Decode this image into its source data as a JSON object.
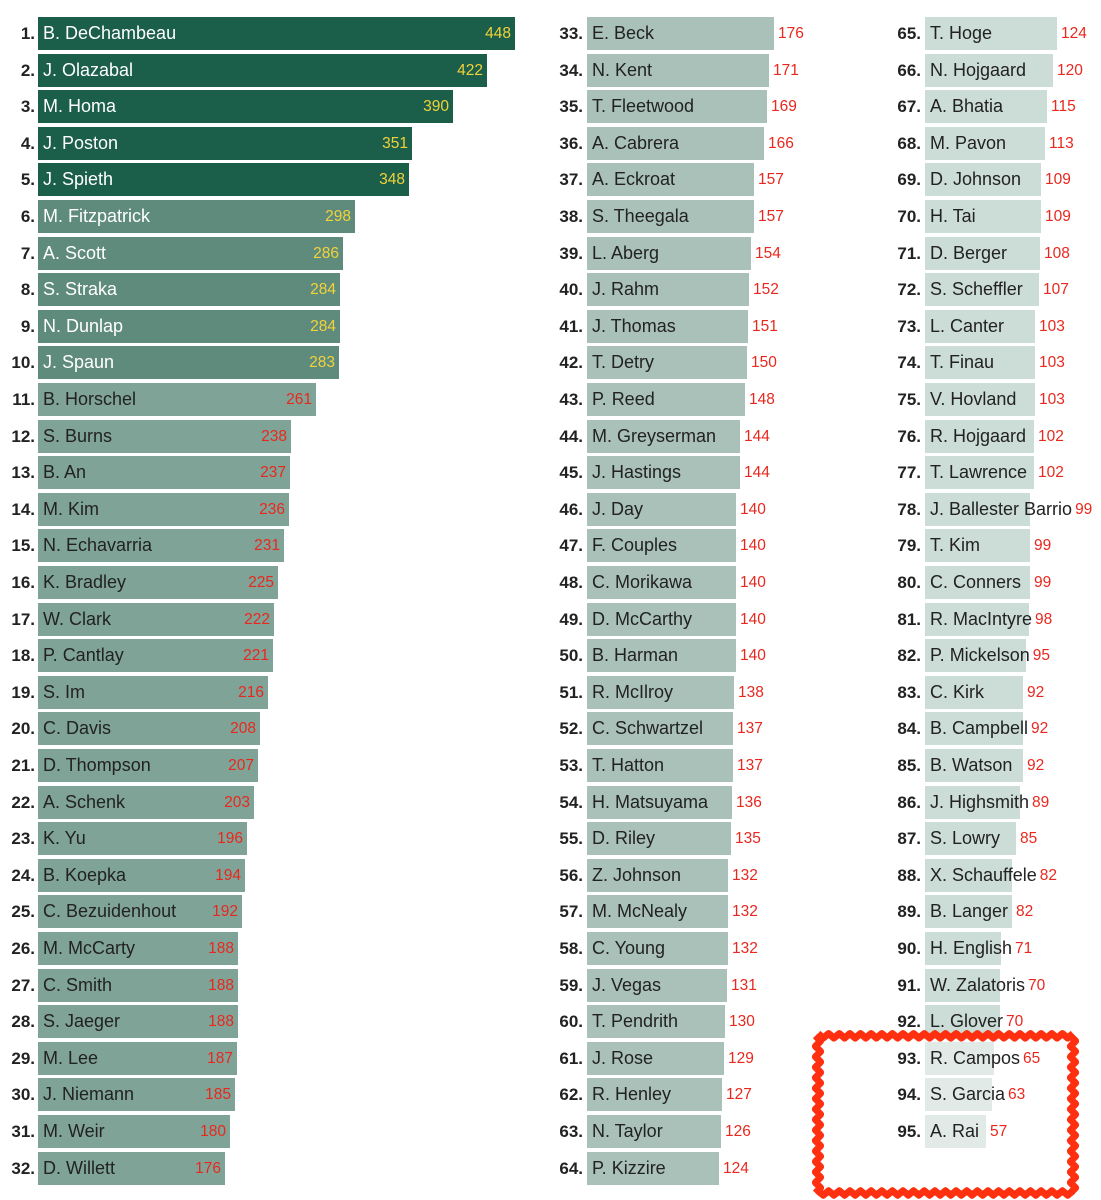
{
  "chart_data": {
    "type": "bar",
    "orientation": "horizontal",
    "categories": [
      "B. DeChambeau",
      "J. Olazabal",
      "M. Homa",
      "J. Poston",
      "J. Spieth",
      "M. Fitzpatrick",
      "A. Scott",
      "S. Straka",
      "N. Dunlap",
      "J. Spaun",
      "B. Horschel",
      "S. Burns",
      "B. An",
      "M. Kim",
      "N. Echavarria",
      "K. Bradley",
      "W. Clark",
      "P. Cantlay",
      "S. Im",
      "C. Davis",
      "D. Thompson",
      "A. Schenk",
      "K. Yu",
      "B. Koepka",
      "C. Bezuidenhout",
      "M. McCarty",
      "C. Smith",
      "S. Jaeger",
      "M. Lee",
      "J. Niemann",
      "M. Weir",
      "D. Willett",
      "E. Beck",
      "N. Kent",
      "T. Fleetwood",
      "A. Cabrera",
      "A. Eckroat",
      "S. Theegala",
      "L. Aberg",
      "J. Rahm",
      "J. Thomas",
      "T. Detry",
      "P. Reed",
      "M. Greyserman",
      "J. Hastings",
      "J. Day",
      "F. Couples",
      "C. Morikawa",
      "D. McCarthy",
      "B. Harman",
      "R. McIlroy",
      "C. Schwartzel",
      "T. Hatton",
      "H. Matsuyama",
      "D. Riley",
      "Z. Johnson",
      "M. McNealy",
      "C. Young",
      "J. Vegas",
      "T. Pendrith",
      "J. Rose",
      "R. Henley",
      "N. Taylor",
      "P. Kizzire",
      "T. Hoge",
      "N. Hojgaard",
      "A. Bhatia",
      "M. Pavon",
      "D. Johnson",
      "H. Tai",
      "D. Berger",
      "S. Scheffler",
      "L. Canter",
      "T. Finau",
      "V. Hovland",
      "R. Hojgaard",
      "T. Lawrence",
      "J. Ballester Barrio",
      "T. Kim",
      "C. Conners",
      "R. MacIntyre",
      "P. Mickelson",
      "C. Kirk",
      "B. Campbell",
      "B. Watson",
      "J. Highsmith",
      "S. Lowry",
      "X. Schauffele",
      "B. Langer",
      "H. English",
      "W. Zalatoris",
      "L. Glover",
      "R. Campos",
      "S. Garcia",
      "A. Rai"
    ],
    "values": [
      448,
      422,
      390,
      351,
      348,
      298,
      286,
      284,
      284,
      283,
      261,
      238,
      237,
      236,
      231,
      225,
      222,
      221,
      216,
      208,
      207,
      203,
      196,
      194,
      192,
      188,
      188,
      188,
      187,
      185,
      180,
      176,
      176,
      171,
      169,
      166,
      157,
      157,
      154,
      152,
      151,
      150,
      148,
      144,
      144,
      140,
      140,
      140,
      140,
      140,
      138,
      137,
      137,
      136,
      135,
      132,
      132,
      132,
      131,
      130,
      129,
      127,
      126,
      124,
      124,
      120,
      115,
      113,
      109,
      109,
      108,
      107,
      103,
      103,
      103,
      102,
      102,
      99,
      99,
      99,
      98,
      95,
      92,
      92,
      92,
      89,
      85,
      82,
      82,
      71,
      70,
      70,
      65,
      63,
      57
    ],
    "ranks": [
      "1.",
      "2.",
      "3.",
      "4.",
      "5.",
      "6.",
      "7.",
      "8.",
      "9.",
      "10.",
      "11.",
      "12.",
      "13.",
      "14.",
      "15.",
      "16.",
      "17.",
      "18.",
      "19.",
      "20.",
      "21.",
      "22.",
      "23.",
      "24.",
      "25.",
      "26.",
      "27.",
      "28.",
      "29.",
      "30.",
      "31.",
      "32.",
      "33.",
      "34.",
      "35.",
      "36.",
      "37.",
      "38.",
      "39.",
      "40.",
      "41.",
      "42.",
      "43.",
      "44.",
      "45.",
      "46.",
      "47.",
      "48.",
      "49.",
      "50.",
      "51.",
      "52.",
      "53.",
      "54.",
      "55.",
      "56.",
      "57.",
      "58.",
      "59.",
      "60.",
      "61.",
      "62.",
      "63.",
      "64.",
      "65.",
      "66.",
      "67.",
      "68.",
      "69.",
      "70.",
      "71.",
      "72.",
      "73.",
      "74.",
      "75.",
      "76.",
      "77.",
      "78.",
      "79.",
      "80.",
      "81.",
      "82.",
      "83.",
      "84.",
      "85.",
      "86.",
      "87.",
      "88.",
      "89.",
      "90.",
      "91.",
      "92.",
      "93.",
      "94.",
      "95."
    ],
    "columns": 3,
    "rows_per_column": 32,
    "highlighted_ranks": [
      93,
      94,
      95
    ],
    "colors": {
      "bar_darkest": "#1b5e4a",
      "bar_dark": "#2f6d59",
      "bar_mid": "#5f8b7d",
      "bar_light": "#7fa397",
      "bar_pale": "#a9c1b9",
      "bar_palest": "#ccdcd6",
      "bar_faint": "#e1eae7",
      "label_yellow": "#f2d23a",
      "label_red": "#e8281e",
      "highlight": "#ff3010",
      "name_light": "#ffffff",
      "name_dark": "#222222"
    }
  }
}
